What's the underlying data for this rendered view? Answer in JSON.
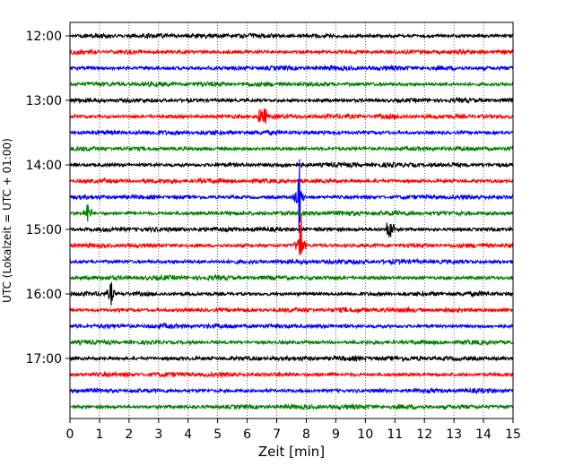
{
  "chart_data": {
    "type": "line",
    "title": "",
    "xlabel": "Zeit  [min]",
    "ylabel": "UTC (Lokalzeit = UTC + 01:00)",
    "xlim": [
      0,
      15
    ],
    "x_ticks": [
      "0",
      "1",
      "2",
      "3",
      "4",
      "5",
      "6",
      "7",
      "8",
      "9",
      "10",
      "11",
      "12",
      "13",
      "14",
      "15"
    ],
    "y_tick_labels": [
      "12:00",
      "13:00",
      "14:00",
      "15:00",
      "16:00",
      "17:00"
    ],
    "row_start": "12:00",
    "row_minutes": 15,
    "row_count": 24,
    "row_colors": [
      "#000000",
      "#ff0000",
      "#0000ff",
      "#008000"
    ],
    "grid": "vertical dotted lines at each minute",
    "events": [
      {
        "row": 10,
        "x": 7.75,
        "type": "large-spike"
      },
      {
        "row": 13,
        "x": 7.8,
        "type": "large-spike"
      },
      {
        "row": 12,
        "x": 10.85,
        "type": "burst"
      },
      {
        "row": 16,
        "x": 1.4,
        "type": "spike"
      },
      {
        "row": 11,
        "x": 0.6,
        "type": "spike"
      },
      {
        "row": 5,
        "x": 6.5,
        "type": "burst"
      }
    ]
  }
}
